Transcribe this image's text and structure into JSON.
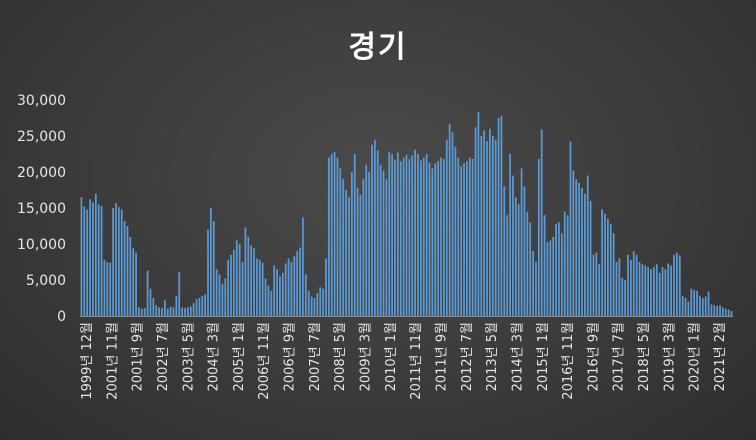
{
  "chart_data": {
    "type": "bar",
    "title": "경기",
    "xlabel": "",
    "ylabel": "",
    "ylim": [
      0,
      30000
    ],
    "y_ticks": [
      "0",
      "5,000",
      "10,000",
      "15,000",
      "20,000",
      "25,000",
      "30,000"
    ],
    "x_tick_labels": [
      "1999년 12월",
      "2001년 11월",
      "2001년 9월",
      "2002년 7월",
      "2003년 5월",
      "2004년 3월",
      "2005년 1월",
      "2006년 11월",
      "2006년 9월",
      "2007년 7월",
      "2008년 5월",
      "2009년 3월",
      "2010년 1월",
      "2011년 11월",
      "2011년 9월",
      "2012년 7월",
      "2013년 5월",
      "2014년 3월",
      "2015년 1월",
      "2016년 11월",
      "2016년 9월",
      "2017년 7월",
      "2018년 5월",
      "2019년 3월",
      "2020년 1월",
      "2021년 2월"
    ],
    "grid": false,
    "legend": "none",
    "bar_color": "#5b9bd5",
    "values": [
      16500,
      15200,
      14800,
      16200,
      15800,
      17000,
      15500,
      15300,
      7800,
      7500,
      7400,
      15000,
      15700,
      15100,
      14800,
      13200,
      12500,
      11000,
      9400,
      8800,
      1200,
      1000,
      1100,
      6300,
      3800,
      2500,
      1500,
      1200,
      1100,
      2200,
      1000,
      1300,
      1200,
      2800,
      6100,
      1200,
      1100,
      1200,
      1300,
      1800,
      2300,
      2500,
      2800,
      3000,
      12000,
      15000,
      13200,
      6500,
      5800,
      4500,
      5200,
      7800,
      8500,
      9200,
      10500,
      10000,
      7500,
      12300,
      11000,
      9800,
      9400,
      8000,
      7800,
      7400,
      5200,
      4200,
      3500,
      7000,
      6500,
      5500,
      6000,
      7300,
      8000,
      7500,
      8300,
      9000,
      9500,
      13700,
      5800,
      3500,
      2700,
      2500,
      3200,
      4000,
      3800,
      8000,
      22000,
      22500,
      22800,
      22000,
      20500,
      19000,
      17500,
      16500,
      20000,
      22500,
      17800,
      16800,
      19000,
      21000,
      20000,
      23800,
      24500,
      23000,
      21000,
      20200,
      19000,
      22800,
      22500,
      21700,
      22700,
      21500,
      22000,
      22400,
      21800,
      22300,
      23100,
      22500,
      21600,
      22000,
      22500,
      21300,
      20500,
      21200,
      21500,
      22000,
      21800,
      24500,
      26700,
      25500,
      23500,
      22000,
      20800,
      21200,
      21500,
      22000,
      21800,
      26200,
      28300,
      25000,
      25800,
      24300,
      26000,
      25000,
      24500,
      27500,
      27800,
      18000,
      14000,
      22500,
      19500,
      16500,
      15500,
      20500,
      18000,
      14500,
      13000,
      9000,
      7500,
      21800,
      25900,
      14000,
      10300,
      10500,
      11000,
      12800,
      13000,
      11500,
      14500,
      14000,
      24200,
      20200,
      19000,
      18500,
      17800,
      17000,
      19500,
      16000,
      8500,
      8800,
      7200,
      14800,
      14200,
      13500,
      12800,
      11500,
      7500,
      8000,
      5300,
      5000,
      8500,
      7800,
      9000,
      8500,
      7500,
      7200,
      7000,
      6800,
      6500,
      6800,
      7200,
      6000,
      6800,
      6500,
      7300,
      7000,
      8500,
      8800,
      8400,
      2800,
      2500,
      2000,
      3800,
      3600,
      3500,
      2800,
      2500,
      2700,
      3400,
      1600,
      1500,
      1400,
      1500,
      1200,
      1000,
      900,
      700
    ]
  }
}
